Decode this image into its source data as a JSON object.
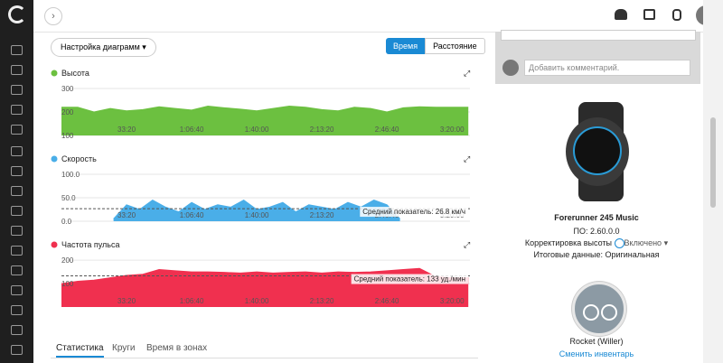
{
  "controls": {
    "settings": "Настройка диаграмм ▾",
    "toggle": [
      "Время",
      "Расстояние"
    ]
  },
  "chart_data": [
    {
      "type": "area",
      "title": "Высота",
      "color": "#6cc040",
      "xlim": [
        0,
        12550
      ],
      "ylim": [
        100,
        300
      ],
      "yticks": [
        100,
        200,
        300
      ],
      "xticks": [
        {
          "value": 2000,
          "label": "33:20"
        },
        {
          "value": 4000,
          "label": "1:06:40"
        },
        {
          "value": 6000,
          "label": "1:40:00"
        },
        {
          "value": 8000,
          "label": "2:13:20"
        },
        {
          "value": 10000,
          "label": "2:46:40"
        },
        {
          "value": 12000,
          "label": "3:20:00"
        }
      ],
      "x": [
        0,
        500,
        1000,
        1500,
        2000,
        2500,
        3000,
        3500,
        4000,
        4500,
        5000,
        5500,
        6000,
        6500,
        7000,
        7500,
        8000,
        8500,
        9000,
        9500,
        10000,
        10500,
        11000,
        11500,
        12000,
        12500
      ],
      "values": [
        220,
        220,
        200,
        215,
        205,
        210,
        222,
        215,
        208,
        225,
        218,
        212,
        205,
        215,
        225,
        220,
        210,
        205,
        220,
        215,
        200,
        218,
        222,
        220,
        220,
        220
      ]
    },
    {
      "type": "area",
      "title": "Скорость",
      "color": "#4aaee8",
      "xlim": [
        0,
        12550
      ],
      "ylim": [
        0,
        100
      ],
      "yticks": [
        {
          "value": 0,
          "label": "0.0"
        },
        {
          "value": 50,
          "label": "50.0"
        },
        {
          "value": 100,
          "label": "100.0"
        }
      ],
      "xticks": [
        {
          "value": 2000,
          "label": "33:20"
        },
        {
          "value": 4000,
          "label": "1:06:40"
        },
        {
          "value": 6000,
          "label": "1:40:00"
        },
        {
          "value": 8000,
          "label": "2:13:20"
        },
        {
          "value": 10000,
          "label": "2:46:40"
        },
        {
          "value": 12000,
          "label": "3:20:00"
        }
      ],
      "x": [
        1600,
        2000,
        2400,
        2800,
        3200,
        3600,
        4000,
        4400,
        4800,
        5200,
        5600,
        6000,
        6400,
        6800,
        7200,
        7600,
        8000,
        8400,
        8800,
        9200,
        9600,
        10000,
        10400
      ],
      "values": [
        5,
        35,
        25,
        45,
        30,
        20,
        40,
        25,
        35,
        30,
        45,
        25,
        30,
        40,
        20,
        35,
        30,
        25,
        40,
        30,
        45,
        35,
        5
      ],
      "average": {
        "value": 26.8,
        "label": "Средний показатель: 26.8 км/ч"
      }
    },
    {
      "type": "area",
      "title": "Частота пульса",
      "color": "#f0304f",
      "xlim": [
        0,
        12550
      ],
      "ylim": [
        0,
        220
      ],
      "yticks": [
        100,
        200
      ],
      "xticks": [
        {
          "value": 2000,
          "label": "33:20"
        },
        {
          "value": 4000,
          "label": "1:06:40"
        },
        {
          "value": 6000,
          "label": "1:40:00"
        },
        {
          "value": 8000,
          "label": "2:13:20"
        },
        {
          "value": 10000,
          "label": "2:46:40"
        },
        {
          "value": 12000,
          "label": "3:20:00"
        }
      ],
      "x": [
        0,
        500,
        1000,
        1500,
        2000,
        2500,
        3000,
        3500,
        4000,
        4500,
        5000,
        5500,
        6000,
        6500,
        7000,
        7500,
        8000,
        8500,
        9000,
        9500,
        10000,
        10500,
        11000,
        11500,
        12000,
        12500
      ],
      "values": [
        100,
        110,
        115,
        125,
        135,
        140,
        160,
        155,
        150,
        150,
        148,
        145,
        150,
        145,
        148,
        150,
        145,
        150,
        148,
        150,
        155,
        160,
        165,
        130,
        125,
        125
      ],
      "average": {
        "value": 133,
        "label": "Средний показатель: 133 уд./мин"
      }
    }
  ],
  "tabs": [
    "Статистика",
    "Круги",
    "Время в зонах"
  ],
  "comment": {
    "placeholder": "Добавить комментарий."
  },
  "device": {
    "name": "Forerunner 245 Music",
    "firmware": "ПО: 2.60.0.0",
    "altitude_label": "Корректировка высоты",
    "altitude_value": "Включено ▾",
    "summary": "Итоговые данные: Оригинальная"
  },
  "gear": {
    "name": "Rocket (Willer)",
    "change": "Сменить инвентарь"
  }
}
